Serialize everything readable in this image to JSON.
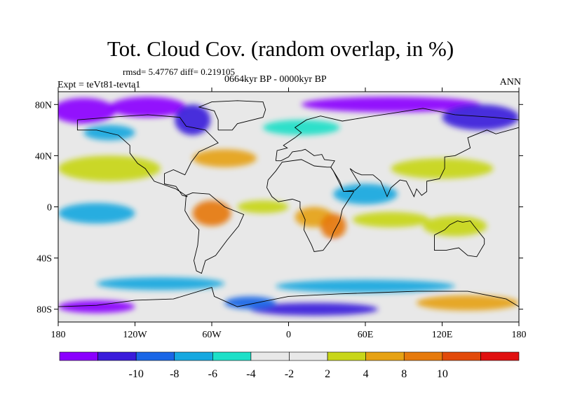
{
  "title": "Tot. Cloud Cov. (random overlap, in %)",
  "stats": "rmsd= 5.47767 diff= 0.219105",
  "period": "0664kyr BP - 0000kyr BP",
  "experiment": "Expt = teVt81-tevta1",
  "season": "ANN",
  "map": {
    "projection": "equirectangular",
    "lon_range": [
      -180,
      180
    ],
    "lat_range": [
      -90,
      90
    ],
    "lon_ticks": [
      {
        "value": -180,
        "label": "180"
      },
      {
        "value": -120,
        "label": "120W"
      },
      {
        "value": -60,
        "label": "60W"
      },
      {
        "value": 0,
        "label": "0"
      },
      {
        "value": 60,
        "label": "60E"
      },
      {
        "value": 120,
        "label": "120E"
      },
      {
        "value": 180,
        "label": "180"
      }
    ],
    "lat_ticks": [
      {
        "value": 80,
        "label": "80N"
      },
      {
        "value": 40,
        "label": "40N"
      },
      {
        "value": 0,
        "label": "0"
      },
      {
        "value": -40,
        "label": "40S"
      },
      {
        "value": -80,
        "label": "80S"
      }
    ],
    "field_note_colors": {
      "neutral": "#e8e8e8"
    },
    "anomaly_regions": [
      {
        "lon": -160,
        "lat": 75,
        "rx": 25,
        "ry": 10,
        "level": 0
      },
      {
        "lon": -110,
        "lat": 78,
        "rx": 30,
        "ry": 8,
        "level": 0
      },
      {
        "lon": 80,
        "lat": 80,
        "rx": 70,
        "ry": 6,
        "level": 0
      },
      {
        "lon": 150,
        "lat": 70,
        "rx": 30,
        "ry": 10,
        "level": 1
      },
      {
        "lon": -75,
        "lat": 68,
        "rx": 14,
        "ry": 12,
        "level": 1
      },
      {
        "lon": -140,
        "lat": 58,
        "rx": 20,
        "ry": 6,
        "level": 3
      },
      {
        "lon": 10,
        "lat": 62,
        "rx": 30,
        "ry": 6,
        "level": 4
      },
      {
        "lon": -140,
        "lat": 30,
        "rx": 40,
        "ry": 10,
        "level": 7
      },
      {
        "lon": -50,
        "lat": 38,
        "rx": 25,
        "ry": 7,
        "level": 8
      },
      {
        "lon": 120,
        "lat": 30,
        "rx": 40,
        "ry": 8,
        "level": 7
      },
      {
        "lon": -150,
        "lat": -5,
        "rx": 30,
        "ry": 8,
        "level": 3
      },
      {
        "lon": -60,
        "lat": -5,
        "rx": 15,
        "ry": 10,
        "level": 9
      },
      {
        "lon": -20,
        "lat": 0,
        "rx": 20,
        "ry": 5,
        "level": 7
      },
      {
        "lon": 20,
        "lat": -8,
        "rx": 15,
        "ry": 8,
        "level": 8
      },
      {
        "lon": 35,
        "lat": -15,
        "rx": 10,
        "ry": 10,
        "level": 9
      },
      {
        "lon": 60,
        "lat": 10,
        "rx": 25,
        "ry": 8,
        "level": 3
      },
      {
        "lon": 80,
        "lat": -10,
        "rx": 30,
        "ry": 6,
        "level": 7
      },
      {
        "lon": 130,
        "lat": -15,
        "rx": 25,
        "ry": 8,
        "level": 7
      },
      {
        "lon": -120,
        "lat": -30,
        "rx": 30,
        "ry": 10,
        "level": 6
      },
      {
        "lon": 60,
        "lat": -35,
        "rx": 60,
        "ry": 7,
        "level": 6
      },
      {
        "lon": -100,
        "lat": -60,
        "rx": 50,
        "ry": 5,
        "level": 3
      },
      {
        "lon": 60,
        "lat": -62,
        "rx": 70,
        "ry": 5,
        "level": 3
      },
      {
        "lon": -150,
        "lat": -78,
        "rx": 30,
        "ry": 5,
        "level": 0
      },
      {
        "lon": 20,
        "lat": -80,
        "rx": 50,
        "ry": 5,
        "level": 1
      },
      {
        "lon": 140,
        "lat": -75,
        "rx": 40,
        "ry": 6,
        "level": 8
      },
      {
        "lon": -30,
        "lat": -75,
        "rx": 20,
        "ry": 5,
        "level": 2
      }
    ]
  },
  "colorbar": {
    "colors": [
      "#8b00ff",
      "#3a1cdb",
      "#1a66e6",
      "#16a8e0",
      "#1de0c8",
      "#e8e8e8",
      "#e8e8e8",
      "#c8d61a",
      "#e6a214",
      "#e67a0c",
      "#e24a0a",
      "#e01010"
    ],
    "labels": [
      "-10",
      "-8",
      "-6",
      "-4",
      "-2",
      "2",
      "4",
      "8",
      "10"
    ]
  }
}
